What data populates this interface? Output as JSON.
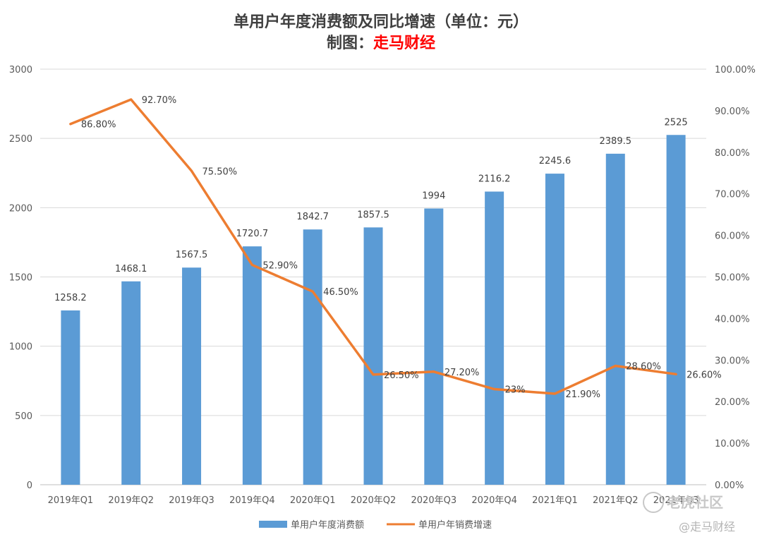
{
  "chart_data": {
    "type": "bar+line",
    "title": "单用户年度消费额及同比增速（单位：元）",
    "subtitle_prefix": "制图：",
    "subtitle_brand": "走马财经",
    "categories": [
      "2019年Q1",
      "2019年Q2",
      "2019年Q3",
      "2019年Q4",
      "2020年Q1",
      "2020年Q2",
      "2020年Q3",
      "2020年Q4",
      "2021年Q1",
      "2021年Q2",
      "2021年Q3"
    ],
    "category_display": [
      "2019年Q1",
      "2019年Q2",
      "2019年Q3",
      "2019年Q4",
      "2020年Q1",
      "2020年Q2",
      "2020年Q3",
      "2020年Q4",
      "2021年Q1",
      "2021年Q2",
      "2021年Q3"
    ],
    "series": [
      {
        "name": "单用户年度消费额",
        "type": "bar",
        "axis": "left",
        "color": "#5b9bd5",
        "values": [
          1258.2,
          1468.1,
          1567.5,
          1720.7,
          1842.7,
          1857.5,
          1994,
          2116.2,
          2245.6,
          2389.5,
          2525
        ],
        "labels": [
          "1258.2",
          "1468.1",
          "1567.5",
          "1720.7",
          "1842.7",
          "1857.5",
          "1994",
          "2116.2",
          "2245.6",
          "2389.5",
          "2525"
        ]
      },
      {
        "name": "单用户年销费增速",
        "type": "line",
        "axis": "right",
        "color": "#ed7d31",
        "values": [
          86.8,
          92.7,
          75.5,
          52.9,
          46.5,
          26.5,
          27.2,
          23,
          21.9,
          28.6,
          26.6
        ],
        "labels": [
          "86.80%",
          "92.70%",
          "75.50%",
          "52.90%",
          "46.50%",
          "26.50%",
          "27.20%",
          "23%",
          "21.90%",
          "28.60%",
          "26.60%"
        ]
      }
    ],
    "y_left": {
      "min": 0,
      "max": 3000,
      "ticks": [
        "0",
        "500",
        "1000",
        "1500",
        "2000",
        "2500",
        "3000"
      ]
    },
    "y_right": {
      "min": 0,
      "max": 100,
      "ticks": [
        "0.00%",
        "10.00%",
        "20.00%",
        "30.00%",
        "40.00%",
        "50.00%",
        "60.00%",
        "70.00%",
        "80.00%",
        "90.00%",
        "100.00%"
      ]
    },
    "grid": true,
    "legend_position": "bottom"
  },
  "watermark": {
    "text": "老虎社区",
    "source": "@走马财经"
  }
}
